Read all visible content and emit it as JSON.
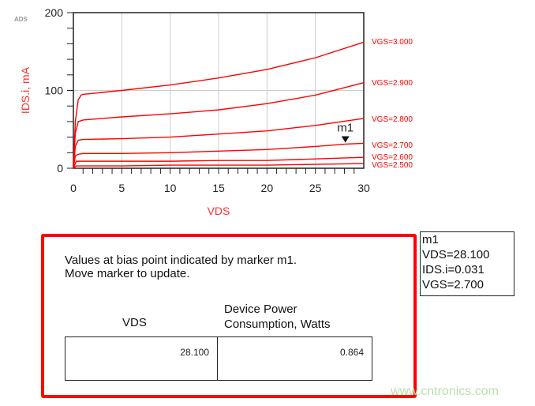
{
  "chart_data": {
    "type": "line",
    "xlabel": "VDS",
    "ylabel": "IDS.i, mA",
    "xlim": [
      0,
      30
    ],
    "ylim": [
      0,
      200
    ],
    "xticks": [
      0,
      5,
      10,
      15,
      20,
      25,
      30
    ],
    "yticks": [
      0,
      100,
      200
    ],
    "grid": true,
    "series": [
      {
        "name": "VGS=3.000",
        "x": [
          0,
          0.2,
          0.5,
          0.8,
          1,
          5,
          10,
          15,
          20,
          25,
          30
        ],
        "y": [
          0,
          60,
          88,
          94,
          95,
          100,
          107,
          116,
          127,
          142,
          162
        ]
      },
      {
        "name": "VGS=2.900",
        "x": [
          0,
          0.2,
          0.5,
          1,
          5,
          10,
          15,
          20,
          25,
          30
        ],
        "y": [
          0,
          45,
          60,
          62,
          66,
          70,
          75,
          83,
          94,
          110
        ]
      },
      {
        "name": "VGS=2.800",
        "x": [
          0,
          0.2,
          0.5,
          1,
          5,
          10,
          15,
          20,
          25,
          30
        ],
        "y": [
          0,
          28,
          36,
          37,
          38,
          40,
          44,
          48,
          55,
          64
        ]
      },
      {
        "name": "VGS=2.700",
        "x": [
          0,
          0.2,
          0.5,
          1,
          5,
          10,
          15,
          20,
          25,
          28.1,
          30
        ],
        "y": [
          0,
          16,
          18,
          19,
          19,
          20,
          22,
          24,
          28,
          31,
          32
        ]
      },
      {
        "name": "VGS=2.600",
        "x": [
          0,
          0.3,
          5,
          10,
          15,
          20,
          25,
          30
        ],
        "y": [
          0,
          9,
          9,
          9,
          10,
          10,
          12,
          14
        ]
      },
      {
        "name": "VGS=2.500",
        "x": [
          0,
          0.3,
          5,
          10,
          15,
          20,
          25,
          30
        ],
        "y": [
          0,
          3,
          3,
          4,
          4,
          4,
          5,
          6
        ]
      }
    ],
    "marker": {
      "name": "m1",
      "x": 28.1,
      "y": 31
    },
    "line_color": "#ff0000"
  },
  "watermark_top": "ADS",
  "note": {
    "line1": "Values at bias point indicated by marker m1.",
    "line2": "Move marker to update."
  },
  "table": {
    "col1_header": "VDS",
    "col2_header_1": "Device Power",
    "col2_header_2": "Consumption, Watts",
    "vds": "28.100",
    "power": "0.864"
  },
  "marker_readout": {
    "name": "m1",
    "vds": "VDS=28.100",
    "ids": "IDS.i=0.031",
    "vgs": "VGS=2.700"
  },
  "watermark": "www.cntronics.com"
}
